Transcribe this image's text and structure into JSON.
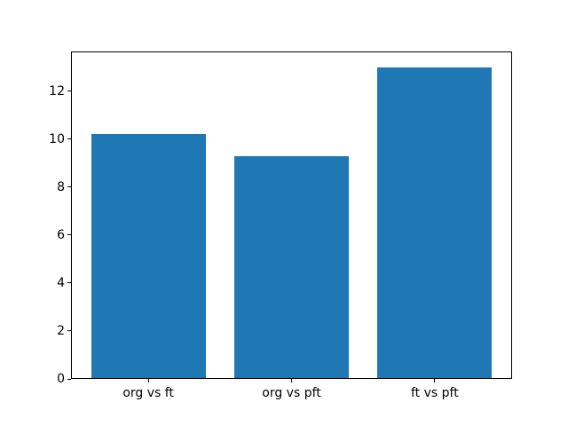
{
  "figure": {
    "background": "#ffffff"
  },
  "chart_data": {
    "type": "bar",
    "categories": [
      "org vs ft",
      "org vs pft",
      "ft vs pft"
    ],
    "values": [
      10.2,
      9.3,
      13.0
    ],
    "title": "",
    "xlabel": "",
    "ylabel": "",
    "ylim": [
      0,
      13.65
    ],
    "yticks": [
      0,
      2,
      4,
      6,
      8,
      10,
      12
    ],
    "xlim": [
      -0.54,
      2.54
    ],
    "bar_width": 0.8,
    "bar_color": "#1f77b4",
    "axis_color": "#000000",
    "text_color": "#000000",
    "grid": false,
    "legend": null
  }
}
